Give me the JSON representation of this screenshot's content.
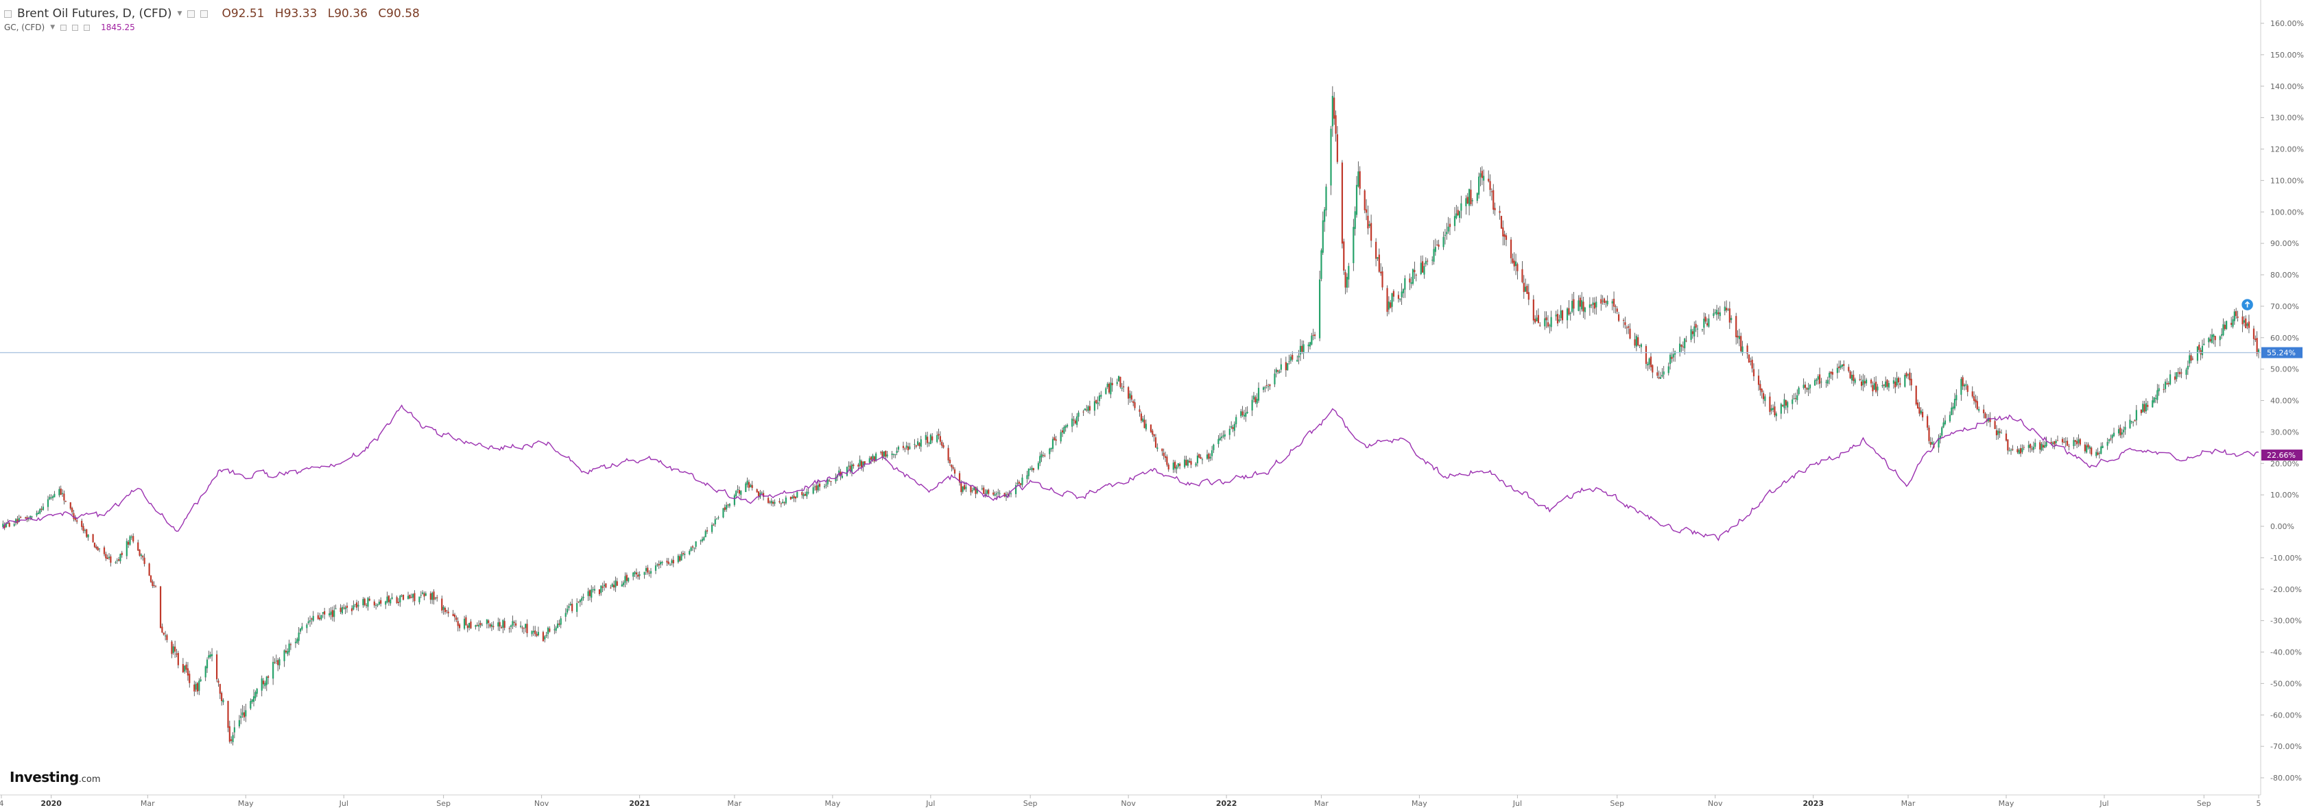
{
  "legend": {
    "main_title": "Brent Oil Futures, D, (CFD)",
    "open": "O92.51",
    "high": "H93.33",
    "low": "L90.36",
    "close": "C90.58",
    "secondary_title": "GC, (CFD)",
    "secondary_value": "1845.25"
  },
  "logo": {
    "name": "Investing",
    "suffix": ".com"
  },
  "colors": {
    "up": "#26a26a",
    "down": "#c0392b",
    "wick": "#3a3a3a",
    "compare_line": "#9b30b0",
    "price_line": "#aac4e0",
    "price_badge": "#3d7ed6",
    "compare_badge": "#8a1a8a",
    "axis": "#cfcfcf",
    "text": "#666666"
  },
  "chart_data": {
    "type": "candlestick",
    "y_unit": "percent change",
    "ylim": [
      -80,
      160
    ],
    "y_ticks": [
      "160.00%",
      "150.00%",
      "140.00%",
      "130.00%",
      "120.00%",
      "110.00%",
      "100.00%",
      "90.00%",
      "80.00%",
      "70.00%",
      "60.00%",
      "50.00%",
      "40.00%",
      "30.00%",
      "20.00%",
      "10.00%",
      "0.00%",
      "-10.00%",
      "-20.00%",
      "-30.00%",
      "-40.00%",
      "-50.00%",
      "-60.00%",
      "-70.00%",
      "-80.00%"
    ],
    "x_range": [
      "2019-12-01",
      "2023-10-05"
    ],
    "x_ticks": [
      {
        "date": "2019-12-01",
        "label": "4",
        "bold": false
      },
      {
        "date": "2020-01-01",
        "label": "2020",
        "bold": true
      },
      {
        "date": "2020-03-01",
        "label": "Mar",
        "bold": false
      },
      {
        "date": "2020-05-01",
        "label": "May",
        "bold": false
      },
      {
        "date": "2020-07-01",
        "label": "Jul",
        "bold": false
      },
      {
        "date": "2020-09-01",
        "label": "Sep",
        "bold": false
      },
      {
        "date": "2020-11-01",
        "label": "Nov",
        "bold": false
      },
      {
        "date": "2021-01-01",
        "label": "2021",
        "bold": true
      },
      {
        "date": "2021-03-01",
        "label": "Mar",
        "bold": false
      },
      {
        "date": "2021-05-01",
        "label": "May",
        "bold": false
      },
      {
        "date": "2021-07-01",
        "label": "Jul",
        "bold": false
      },
      {
        "date": "2021-09-01",
        "label": "Sep",
        "bold": false
      },
      {
        "date": "2021-11-01",
        "label": "Nov",
        "bold": false
      },
      {
        "date": "2022-01-01",
        "label": "2022",
        "bold": true
      },
      {
        "date": "2022-03-01",
        "label": "Mar",
        "bold": false
      },
      {
        "date": "2022-05-01",
        "label": "May",
        "bold": false
      },
      {
        "date": "2022-07-01",
        "label": "Jul",
        "bold": false
      },
      {
        "date": "2022-09-01",
        "label": "Sep",
        "bold": false
      },
      {
        "date": "2022-11-01",
        "label": "Nov",
        "bold": false
      },
      {
        "date": "2023-01-01",
        "label": "2023",
        "bold": true
      },
      {
        "date": "2023-03-01",
        "label": "Mar",
        "bold": false
      },
      {
        "date": "2023-05-01",
        "label": "May",
        "bold": false
      },
      {
        "date": "2023-07-01",
        "label": "Jul",
        "bold": false
      },
      {
        "date": "2023-09-01",
        "label": "Sep",
        "bold": false
      },
      {
        "date": "2023-10-05",
        "label": "5",
        "bold": false
      }
    ],
    "series": [
      {
        "name": "Brent Oil Futures, D, (CFD)",
        "style": "candles",
        "last_value_label": "55.24%",
        "last_value": 55.24,
        "path": [
          [
            "2019-12-01",
            0
          ],
          [
            "2019-12-20",
            3
          ],
          [
            "2020-01-06",
            12
          ],
          [
            "2020-01-14",
            4
          ],
          [
            "2020-01-31",
            -8
          ],
          [
            "2020-02-10",
            -12
          ],
          [
            "2020-02-20",
            -3
          ],
          [
            "2020-03-06",
            -20
          ],
          [
            "2020-03-09",
            -33
          ],
          [
            "2020-03-31",
            -52
          ],
          [
            "2020-04-10",
            -40
          ],
          [
            "2020-04-21",
            -67
          ],
          [
            "2020-05-10",
            -50
          ],
          [
            "2020-06-10",
            -30
          ],
          [
            "2020-07-15",
            -24
          ],
          [
            "2020-08-25",
            -22
          ],
          [
            "2020-09-10",
            -31
          ],
          [
            "2020-10-15",
            -31
          ],
          [
            "2020-11-02",
            -35
          ],
          [
            "2020-11-25",
            -23
          ],
          [
            "2020-12-31",
            -15
          ],
          [
            "2021-01-31",
            -9
          ],
          [
            "2021-03-08",
            14
          ],
          [
            "2021-03-25",
            7
          ],
          [
            "2021-04-15",
            11
          ],
          [
            "2021-05-18",
            20
          ],
          [
            "2021-07-06",
            29
          ],
          [
            "2021-07-20",
            12
          ],
          [
            "2021-08-20",
            10
          ],
          [
            "2021-09-15",
            27
          ],
          [
            "2021-10-26",
            47
          ],
          [
            "2021-11-26",
            19
          ],
          [
            "2021-12-20",
            22
          ],
          [
            "2022-01-25",
            45
          ],
          [
            "2022-02-25",
            60
          ],
          [
            "2022-03-08",
            137
          ],
          [
            "2022-03-16",
            75
          ],
          [
            "2022-03-24",
            110
          ],
          [
            "2022-04-11",
            70
          ],
          [
            "2022-05-15",
            90
          ],
          [
            "2022-06-10",
            112
          ],
          [
            "2022-07-14",
            63
          ],
          [
            "2022-08-05",
            70
          ],
          [
            "2022-08-30",
            70
          ],
          [
            "2022-09-26",
            48
          ],
          [
            "2022-10-15",
            60
          ],
          [
            "2022-11-07",
            69
          ],
          [
            "2022-12-06",
            36
          ],
          [
            "2022-12-28",
            45
          ],
          [
            "2023-01-20",
            50
          ],
          [
            "2023-02-10",
            43
          ],
          [
            "2023-03-01",
            48
          ],
          [
            "2023-03-17",
            24
          ],
          [
            "2023-04-03",
            46
          ],
          [
            "2023-05-04",
            24
          ],
          [
            "2023-06-12",
            27
          ],
          [
            "2023-06-27",
            23
          ],
          [
            "2023-08-10",
            46
          ],
          [
            "2023-09-20",
            67
          ],
          [
            "2023-10-01",
            62
          ],
          [
            "2023-10-05",
            55.24
          ]
        ]
      },
      {
        "name": "GC, (CFD)",
        "style": "line",
        "last_value_label": "22.66%",
        "last_value": 22.66,
        "path": [
          [
            "2019-12-01",
            0
          ],
          [
            "2020-01-08",
            4
          ],
          [
            "2020-02-01",
            3
          ],
          [
            "2020-02-24",
            12
          ],
          [
            "2020-03-19",
            -2
          ],
          [
            "2020-04-14",
            17
          ],
          [
            "2020-05-20",
            16
          ],
          [
            "2020-07-01",
            20
          ],
          [
            "2020-07-20",
            27
          ],
          [
            "2020-08-06",
            38
          ],
          [
            "2020-08-20",
            31
          ],
          [
            "2020-09-25",
            25
          ],
          [
            "2020-11-06",
            26
          ],
          [
            "2020-11-30",
            17
          ],
          [
            "2021-01-05",
            22
          ],
          [
            "2021-03-08",
            8
          ],
          [
            "2021-04-15",
            13
          ],
          [
            "2021-06-01",
            21
          ],
          [
            "2021-06-30",
            11
          ],
          [
            "2021-07-15",
            16
          ],
          [
            "2021-08-09",
            8
          ],
          [
            "2021-09-03",
            14
          ],
          [
            "2021-09-30",
            9
          ],
          [
            "2021-11-16",
            18
          ],
          [
            "2021-12-15",
            13
          ],
          [
            "2022-01-25",
            17
          ],
          [
            "2022-03-08",
            36
          ],
          [
            "2022-03-29",
            26
          ],
          [
            "2022-04-18",
            28
          ],
          [
            "2022-05-16",
            16
          ],
          [
            "2022-06-10",
            18
          ],
          [
            "2022-07-21",
            5
          ],
          [
            "2022-08-15",
            13
          ],
          [
            "2022-09-28",
            1
          ],
          [
            "2022-11-03",
            -4
          ],
          [
            "2022-12-13",
            14
          ],
          [
            "2023-02-01",
            27
          ],
          [
            "2023-02-28",
            14
          ],
          [
            "2023-03-20",
            28
          ],
          [
            "2023-04-13",
            33
          ],
          [
            "2023-05-04",
            35
          ],
          [
            "2023-06-22",
            19
          ],
          [
            "2023-07-20",
            24
          ],
          [
            "2023-08-21",
            21
          ],
          [
            "2023-09-01",
            24
          ],
          [
            "2023-09-20",
            23
          ],
          [
            "2023-10-05",
            22.66
          ]
        ]
      }
    ],
    "horizontal_line_value": 55.24,
    "annotation_icon": "alert-badge-icon"
  }
}
